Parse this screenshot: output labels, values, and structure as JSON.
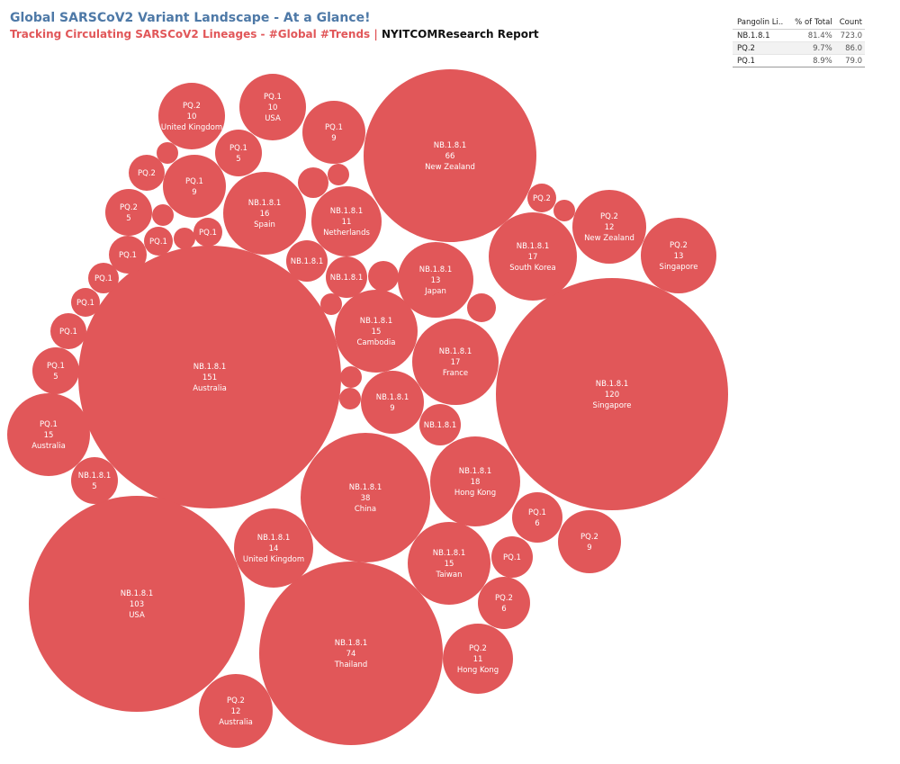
{
  "header": {
    "title": "Global SARSCoV2 Variant Landscape - At a Glance!",
    "subtitle_red": "Tracking Circulating SARSCoV2 Lineages - #Global #Trends |",
    "subtitle_dark": "NYITCOMResearch Report"
  },
  "summary_table": {
    "columns": [
      "Pangolin Li..",
      "% of Total",
      "Count"
    ],
    "rows": [
      [
        "NB.1.8.1",
        "81.4%",
        "723.0"
      ],
      [
        "PQ.2",
        "9.7%",
        "86.0"
      ],
      [
        "PQ.1",
        "8.9%",
        "79.0"
      ]
    ]
  },
  "colors": {
    "bubble": "#e15759",
    "title": "#4e79a7"
  },
  "chart_data": {
    "type": "packed-bubble",
    "size_field": "Count",
    "bubbles": [
      {
        "lineage": "NB.1.8.1",
        "count": 151,
        "country": "Australia"
      },
      {
        "lineage": "NB.1.8.1",
        "count": 120,
        "country": "Singapore"
      },
      {
        "lineage": "NB.1.8.1",
        "count": 103,
        "country": "USA"
      },
      {
        "lineage": "NB.1.8.1",
        "count": 74,
        "country": "Thailand"
      },
      {
        "lineage": "NB.1.8.1",
        "count": 66,
        "country": "New Zealand"
      },
      {
        "lineage": "NB.1.8.1",
        "count": 38,
        "country": "China"
      },
      {
        "lineage": "NB.1.8.1",
        "count": 18,
        "country": "Hong Kong"
      },
      {
        "lineage": "NB.1.8.1",
        "count": 17,
        "country": "South Korea"
      },
      {
        "lineage": "NB.1.8.1",
        "count": 17,
        "country": "France"
      },
      {
        "lineage": "NB.1.8.1",
        "count": 16,
        "country": "Spain"
      },
      {
        "lineage": "NB.1.8.1",
        "count": 15,
        "country": "Cambodia"
      },
      {
        "lineage": "NB.1.8.1",
        "count": 15,
        "country": "Taiwan"
      },
      {
        "lineage": "NB.1.8.1",
        "count": 14,
        "country": "United Kingdom"
      },
      {
        "lineage": "NB.1.8.1",
        "count": 13,
        "country": "Japan"
      },
      {
        "lineage": "NB.1.8.1",
        "count": 11,
        "country": "Netherlands"
      },
      {
        "lineage": "NB.1.8.1",
        "count": 9,
        "country": ""
      },
      {
        "lineage": "NB.1.8.1",
        "count": 5,
        "country": ""
      },
      {
        "lineage": "NB.1.8.1",
        "count": null,
        "country": ""
      },
      {
        "lineage": "NB.1.8.1",
        "count": null,
        "country": ""
      },
      {
        "lineage": "NB.1.8.1",
        "count": null,
        "country": ""
      },
      {
        "lineage": "PQ.1",
        "count": 15,
        "country": "Australia"
      },
      {
        "lineage": "PQ.1",
        "count": 10,
        "country": "USA"
      },
      {
        "lineage": "PQ.1",
        "count": 9,
        "country": ""
      },
      {
        "lineage": "PQ.1",
        "count": 9,
        "country": ""
      },
      {
        "lineage": "PQ.1",
        "count": 6,
        "country": ""
      },
      {
        "lineage": "PQ.1",
        "count": 5,
        "country": ""
      },
      {
        "lineage": "PQ.1",
        "count": 5,
        "country": ""
      },
      {
        "lineage": "PQ.1",
        "count": null,
        "country": ""
      },
      {
        "lineage": "PQ.1",
        "count": null,
        "country": ""
      },
      {
        "lineage": "PQ.1",
        "count": null,
        "country": ""
      },
      {
        "lineage": "PQ.1",
        "count": null,
        "country": ""
      },
      {
        "lineage": "PQ.1",
        "count": null,
        "country": ""
      },
      {
        "lineage": "PQ.1",
        "count": null,
        "country": ""
      },
      {
        "lineage": "PQ.1",
        "count": null,
        "country": ""
      },
      {
        "lineage": "PQ.2",
        "count": 13,
        "country": "Singapore"
      },
      {
        "lineage": "PQ.2",
        "count": 12,
        "country": "New Zealand"
      },
      {
        "lineage": "PQ.2",
        "count": 12,
        "country": "Australia"
      },
      {
        "lineage": "PQ.2",
        "count": 11,
        "country": "Hong Kong"
      },
      {
        "lineage": "PQ.2",
        "count": 10,
        "country": "United Kingdom"
      },
      {
        "lineage": "PQ.2",
        "count": 9,
        "country": ""
      },
      {
        "lineage": "PQ.2",
        "count": 6,
        "country": ""
      },
      {
        "lineage": "PQ.2",
        "count": 5,
        "country": ""
      },
      {
        "lineage": "PQ.2",
        "count": null,
        "country": ""
      },
      {
        "lineage": "PQ.2",
        "count": null,
        "country": ""
      },
      {
        "lineage": null,
        "count": null,
        "country": ""
      },
      {
        "lineage": null,
        "count": null,
        "country": ""
      },
      {
        "lineage": null,
        "count": null,
        "country": ""
      },
      {
        "lineage": null,
        "count": null,
        "country": ""
      },
      {
        "lineage": null,
        "count": null,
        "country": ""
      },
      {
        "lineage": null,
        "count": null,
        "country": ""
      },
      {
        "lineage": null,
        "count": null,
        "country": ""
      },
      {
        "lineage": null,
        "count": null,
        "country": ""
      },
      {
        "lineage": null,
        "count": null,
        "country": ""
      },
      {
        "lineage": null,
        "count": null,
        "country": ""
      },
      {
        "lineage": null,
        "count": null,
        "country": ""
      },
      {
        "lineage": null,
        "count": null,
        "country": ""
      }
    ]
  }
}
